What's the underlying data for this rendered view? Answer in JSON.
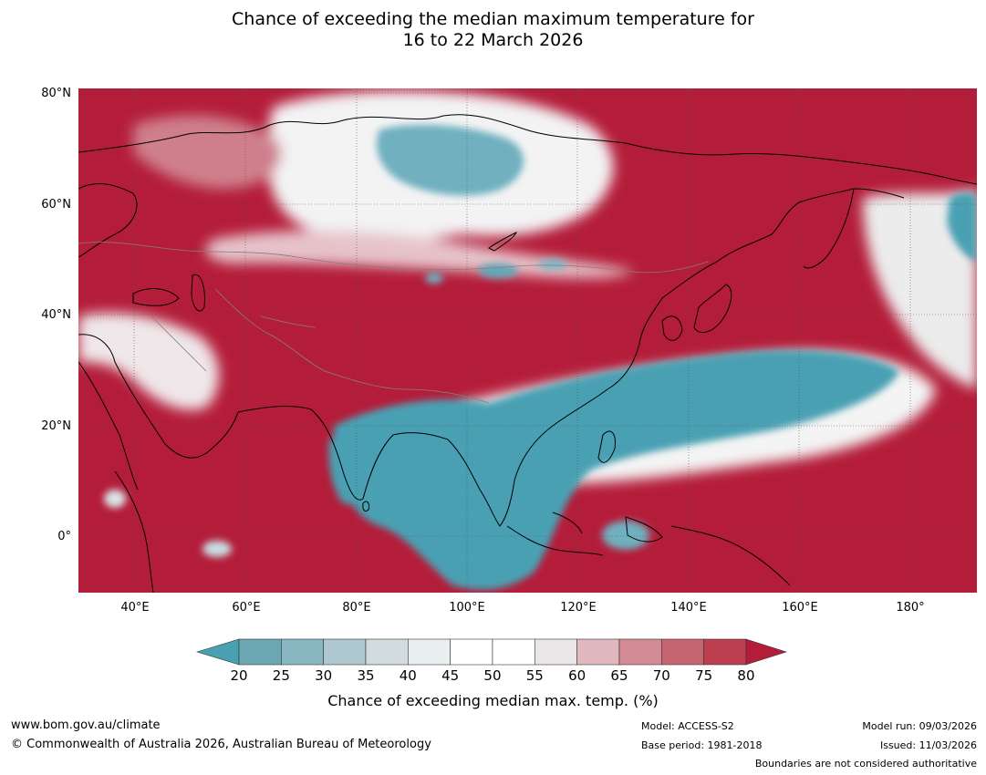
{
  "title": {
    "line1": "Chance of exceeding the median maximum temperature for",
    "line2": "16 to 22 March 2026"
  },
  "map": {
    "region": "Asia and western Pacific",
    "lat_labels": [
      "80°N",
      "60°N",
      "40°N",
      "20°N",
      "0°"
    ],
    "lon_labels": [
      "40°E",
      "60°E",
      "80°E",
      "100°E",
      "120°E",
      "140°E",
      "160°E",
      "180°"
    ],
    "colors": {
      "low": "#4aa0b3",
      "high": "#b41d3a",
      "neutral": "#ffffff"
    }
  },
  "colorbar": {
    "ticks": [
      "20",
      "25",
      "30",
      "35",
      "40",
      "45",
      "50",
      "55",
      "60",
      "65",
      "70",
      "75",
      "80"
    ],
    "colors": [
      "#4aa0b3",
      "#6ba6b3",
      "#88b7c2",
      "#adc8ce",
      "#d2dbdd",
      "#e9eef0",
      "#ffffff",
      "#ffffff",
      "#ebe6e8",
      "#e0b8be",
      "#d38b95",
      "#c66570",
      "#bc3e4f",
      "#b41d3a"
    ],
    "label": "Chance of exceeding median max. temp. (%)"
  },
  "footer": {
    "website": "www.bom.gov.au/climate",
    "copyright": "© Commonwealth of Australia 2026, Australian Bureau of Meteorology",
    "model": "Model: ACCESS-S2",
    "base_period": "Base period: 1981-2018",
    "model_run": "Model run: 09/03/2026",
    "issued": "Issued: 11/03/2026",
    "disclaimer": "Boundaries are not considered authoritative"
  }
}
